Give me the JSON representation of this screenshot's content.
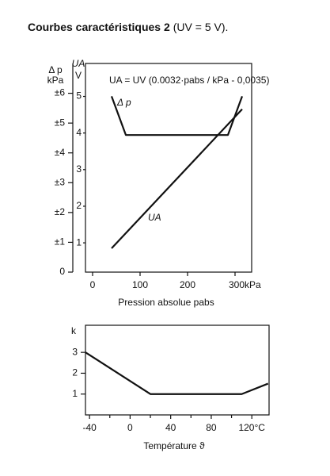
{
  "chart_data": [
    {
      "type": "line",
      "title": "Courbes caractéristiques 2",
      "subtitle": "(UV = 5 V).",
      "x_label": "Pression absolue pabs",
      "y_label": [
        "Δ p",
        "kPa"
      ],
      "y2_label": [
        "UA",
        "V"
      ],
      "annotations": [
        "UA = UV (0.0032·pabs / kPa - 0,0035)",
        "Δ p",
        "UA"
      ],
      "xlim": [
        -15,
        335
      ],
      "xticks": [
        0,
        100,
        200,
        {
          "value": 300,
          "label": "300kPa"
        }
      ],
      "ylim": [
        0,
        7
      ],
      "yticks": [
        0,
        {
          "value": 1,
          "label": "±1"
        },
        {
          "value": 2,
          "label": "±2"
        },
        {
          "value": 3,
          "label": "±3"
        },
        {
          "value": 4,
          "label": "±4"
        },
        {
          "value": 5,
          "label": "±5"
        },
        {
          "value": 6,
          "label": "±6"
        }
      ],
      "y2lim": [
        0.2,
        5.9
      ],
      "y2ticks": [
        1,
        2,
        3,
        4,
        5
      ],
      "grid": false,
      "series": [
        {
          "name": "Δ p",
          "color": "#111111",
          "x": [
            40,
            70,
            285,
            315
          ],
          "values": [
            5.9,
            4.6,
            4.6,
            5.9
          ]
        },
        {
          "name": "UA",
          "color": "#111111",
          "axis": "y2",
          "x": [
            40,
            315
          ],
          "values": [
            0.85,
            4.65
          ]
        }
      ]
    },
    {
      "type": "line",
      "x_label": "Température ϑ",
      "y_label": "k",
      "xlim": [
        -44,
        137
      ],
      "xticks": [
        -40,
        0,
        40,
        80,
        {
          "value": 120,
          "label": "120°C"
        }
      ],
      "xminor": [
        -20,
        20,
        60,
        100
      ],
      "ylim": [
        0,
        4.3
      ],
      "yticks": [
        1,
        2,
        3
      ],
      "grid": false,
      "series": [
        {
          "name": "k",
          "color": "#111111",
          "x": [
            -44,
            20,
            110,
            136
          ],
          "values": [
            3,
            1,
            1,
            1.5
          ]
        }
      ]
    }
  ]
}
